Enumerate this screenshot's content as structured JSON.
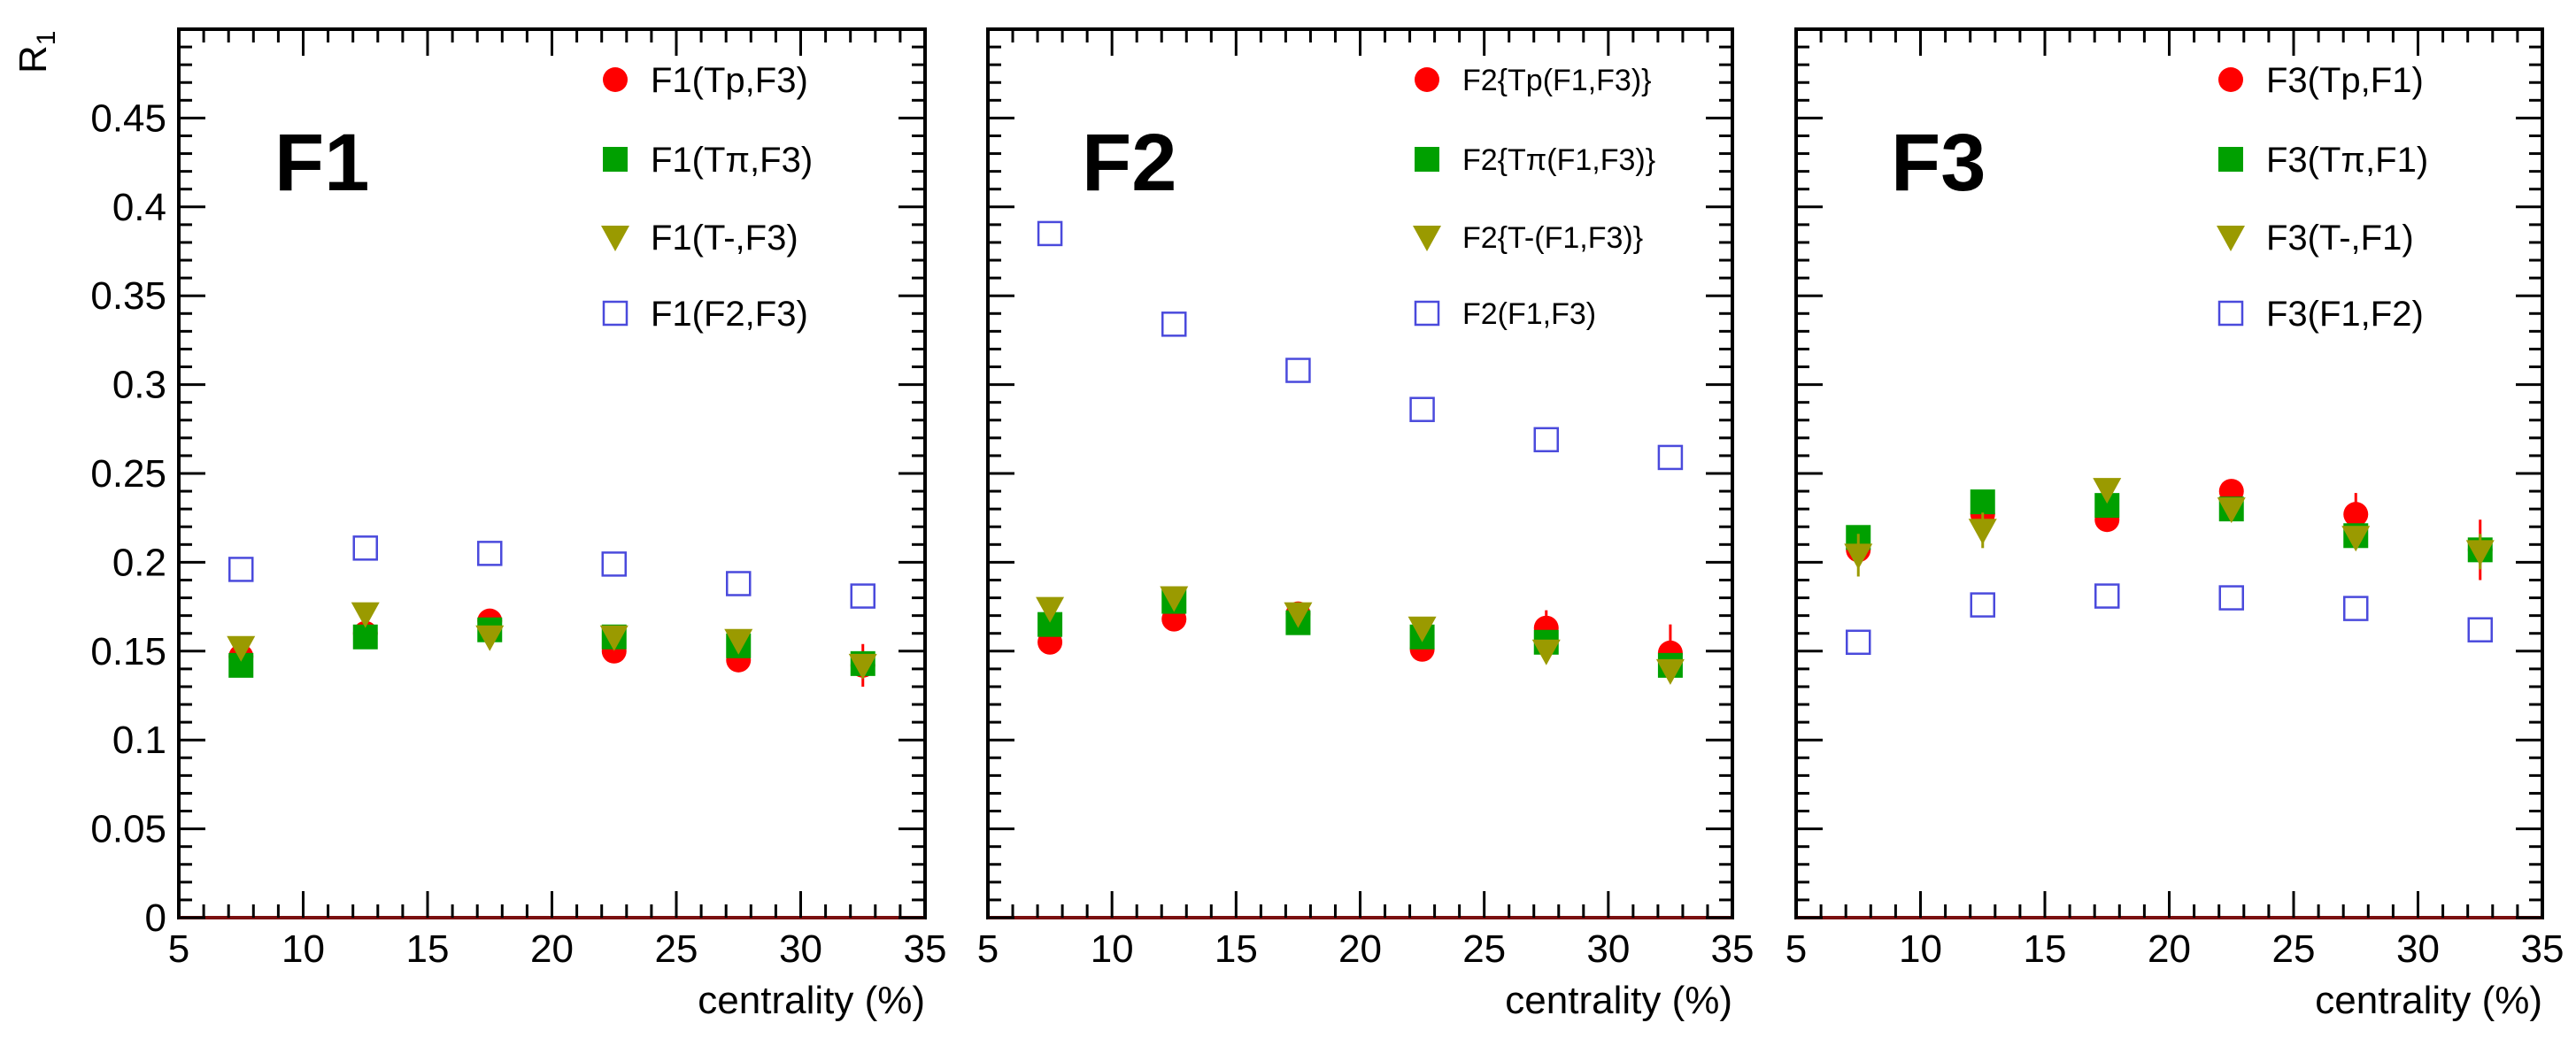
{
  "chart_data": [
    {
      "type": "scatter",
      "title": "F1",
      "xlabel": "centrality (%)",
      "ylabel": "R1",
      "xlim": [
        5,
        35
      ],
      "ylim": [
        0,
        0.5
      ],
      "x_ticks": [
        "5",
        "10",
        "15",
        "20",
        "25",
        "30",
        "35"
      ],
      "y_ticks": [
        "0",
        "0.05",
        "0.1",
        "0.15",
        "0.2",
        "0.25",
        "0.3",
        "0.35",
        "0.4",
        "0.45"
      ],
      "legend_position": "top-right",
      "x": [
        7.5,
        12.5,
        17.5,
        22.5,
        27.5,
        32.5
      ],
      "series": [
        {
          "name": "F1(Tp,F3)",
          "marker": "circle",
          "color": "#ff0000",
          "values": [
            0.147,
            0.16,
            0.167,
            0.15,
            0.145,
            0.142
          ],
          "errors": [
            0.004,
            0.004,
            0.004,
            0.004,
            0.005,
            0.012
          ]
        },
        {
          "name": "F1(Tπ,F3)",
          "marker": "square",
          "color": "#00a000",
          "values": [
            0.142,
            0.158,
            0.162,
            0.158,
            0.153,
            0.143
          ],
          "errors": [
            0.003,
            0.003,
            0.003,
            0.003,
            0.004,
            0.006
          ]
        },
        {
          "name": "F1(T-,F3)",
          "marker": "triangle-down",
          "color": "#9a9a00",
          "values": [
            0.152,
            0.171,
            0.158,
            0.158,
            0.156,
            0.142
          ],
          "errors": [
            0.003,
            0.003,
            0.003,
            0.003,
            0.004,
            0.006
          ]
        },
        {
          "name": "F1(F2,F3)",
          "marker": "open-square",
          "color": "#4a4adc",
          "values": [
            0.196,
            0.208,
            0.205,
            0.199,
            0.188,
            0.181
          ],
          "errors": [
            0,
            0,
            0,
            0,
            0,
            0
          ]
        }
      ]
    },
    {
      "type": "scatter",
      "title": "F2",
      "xlabel": "centrality (%)",
      "ylabel": "",
      "xlim": [
        5,
        35
      ],
      "ylim": [
        0,
        0.5
      ],
      "x_ticks": [
        "5",
        "10",
        "15",
        "20",
        "25",
        "30",
        "35"
      ],
      "y_ticks": [],
      "legend_position": "top-right",
      "x": [
        7.5,
        12.5,
        17.5,
        22.5,
        27.5,
        32.5
      ],
      "series": [
        {
          "name": "F2{Tp(F1,F3)}",
          "marker": "circle",
          "color": "#ff0000",
          "values": [
            0.155,
            0.168,
            0.171,
            0.151,
            0.163,
            0.149
          ],
          "errors": [
            0.004,
            0.004,
            0.004,
            0.004,
            0.01,
            0.016
          ]
        },
        {
          "name": "F2{Tπ(F1,F3)}",
          "marker": "square",
          "color": "#00a000",
          "values": [
            0.165,
            0.178,
            0.166,
            0.158,
            0.155,
            0.142
          ],
          "errors": [
            0.003,
            0.003,
            0.003,
            0.003,
            0.004,
            0.006
          ]
        },
        {
          "name": "F2{T-(F1,F3)}",
          "marker": "triangle-down",
          "color": "#9a9a00",
          "values": [
            0.174,
            0.18,
            0.171,
            0.163,
            0.15,
            0.139
          ],
          "errors": [
            0.003,
            0.003,
            0.003,
            0.003,
            0.004,
            0.006
          ]
        },
        {
          "name": "F2(F1,F3)",
          "marker": "open-square",
          "color": "#4a4adc",
          "values": [
            0.385,
            0.334,
            0.308,
            0.286,
            0.269,
            0.259
          ],
          "errors": [
            0,
            0,
            0,
            0,
            0,
            0
          ]
        }
      ]
    },
    {
      "type": "scatter",
      "title": "F3",
      "xlabel": "centrality (%)",
      "ylabel": "",
      "xlim": [
        5,
        35
      ],
      "ylim": [
        0,
        0.5
      ],
      "x_ticks": [
        "5",
        "10",
        "15",
        "20",
        "25",
        "30",
        "35"
      ],
      "y_ticks": [],
      "legend_position": "top-right",
      "x": [
        7.5,
        12.5,
        17.5,
        22.5,
        27.5,
        32.5
      ],
      "series": [
        {
          "name": "F3(Tp,F1)",
          "marker": "circle",
          "color": "#ff0000",
          "values": [
            0.207,
            0.227,
            0.224,
            0.24,
            0.227,
            0.207
          ],
          "errors": [
            0.008,
            0.006,
            0.006,
            0.006,
            0.012,
            0.017
          ]
        },
        {
          "name": "F3(Tπ,F1)",
          "marker": "square",
          "color": "#00a000",
          "values": [
            0.214,
            0.234,
            0.232,
            0.23,
            0.215,
            0.207
          ],
          "errors": [
            0.006,
            0.005,
            0.005,
            0.005,
            0.006,
            0.008
          ]
        },
        {
          "name": "F3(T-,F1)",
          "marker": "triangle-down",
          "color": "#9a9a00",
          "values": [
            0.204,
            0.218,
            0.241,
            0.23,
            0.214,
            0.206
          ],
          "errors": [
            0.012,
            0.01,
            0.005,
            0.005,
            0.006,
            0.01
          ]
        },
        {
          "name": "F3(F1,F2)",
          "marker": "open-square",
          "color": "#4a4adc",
          "values": [
            0.155,
            0.176,
            0.181,
            0.18,
            0.174,
            0.162
          ],
          "errors": [
            0,
            0,
            0,
            0,
            0,
            0
          ]
        }
      ]
    }
  ]
}
